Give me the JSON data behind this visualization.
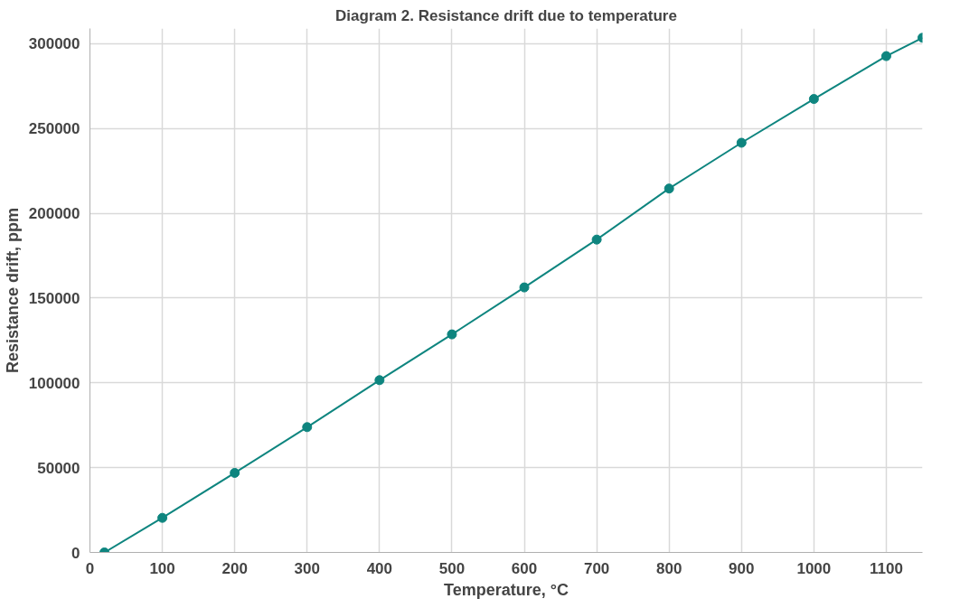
{
  "chart_data": {
    "type": "line",
    "title": "Diagram 2. Resistance drift due to temperature",
    "xlabel": "Temperature, °C",
    "ylabel": "Resistance drift, ppm",
    "x": [
      20,
      100,
      200,
      300,
      400,
      500,
      600,
      700,
      800,
      900,
      1000,
      1100,
      1150
    ],
    "series": [
      {
        "color": "#0e857f",
        "values": [
          0,
          20400,
          46900,
          73900,
          101600,
          128600,
          156300,
          184500,
          214600,
          241600,
          267400,
          292700,
          303500
        ]
      }
    ],
    "xlim": [
      0,
      1150
    ],
    "ylim": [
      0,
      309000
    ],
    "xticks": [
      0,
      100,
      200,
      300,
      400,
      500,
      600,
      700,
      800,
      900,
      1000,
      1100
    ],
    "yticks": [
      0,
      50000,
      100000,
      150000,
      200000,
      250000,
      300000
    ],
    "grid": true,
    "marker": "circle",
    "line_style": "solid"
  }
}
